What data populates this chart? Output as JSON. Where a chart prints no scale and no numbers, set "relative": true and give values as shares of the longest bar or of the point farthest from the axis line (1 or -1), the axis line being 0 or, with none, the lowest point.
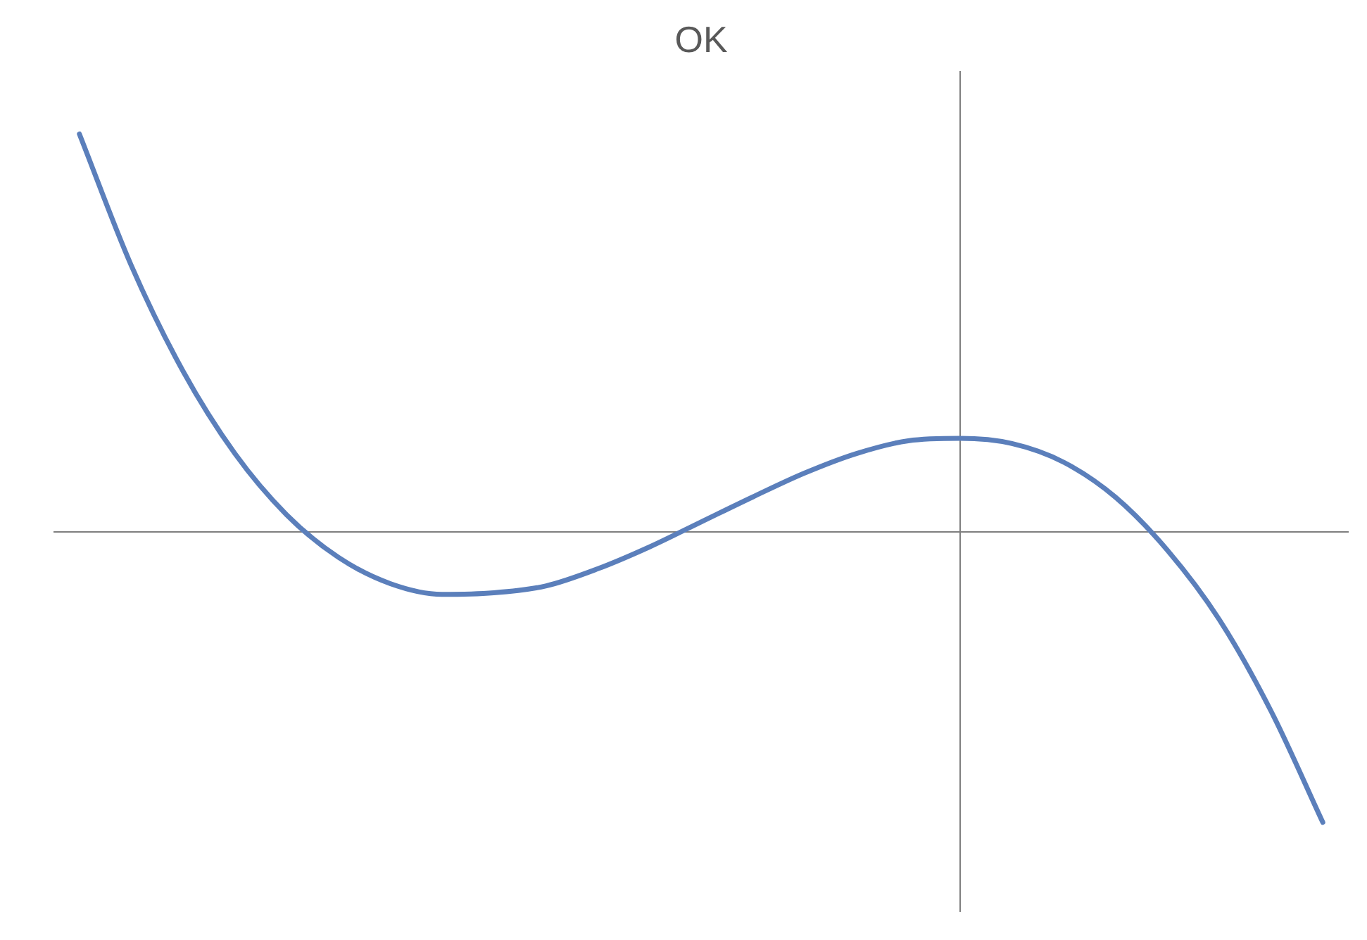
{
  "chart_data": {
    "type": "line",
    "title": "OK",
    "relative": true,
    "grid": false,
    "legend": false,
    "marker": "none",
    "categories": [
      null,
      null,
      null,
      null,
      null,
      null,
      null,
      null,
      null,
      null,
      null,
      null,
      null,
      null,
      null,
      null,
      null,
      null,
      null,
      null,
      null,
      null,
      null,
      null,
      null
    ],
    "series": [
      {
        "color": "#5b7fbb",
        "values": [
          1.0,
          0.67,
          0.404,
          0.197,
          0.043,
          -0.064,
          -0.13,
          -0.157,
          -0.153,
          -0.136,
          -0.093,
          -0.038,
          0.025,
          0.088,
          0.148,
          0.197,
          0.229,
          0.235,
          0.222,
          0.175,
          0.087,
          -0.046,
          -0.22,
          -0.45,
          -0.73
        ]
      }
    ]
  }
}
